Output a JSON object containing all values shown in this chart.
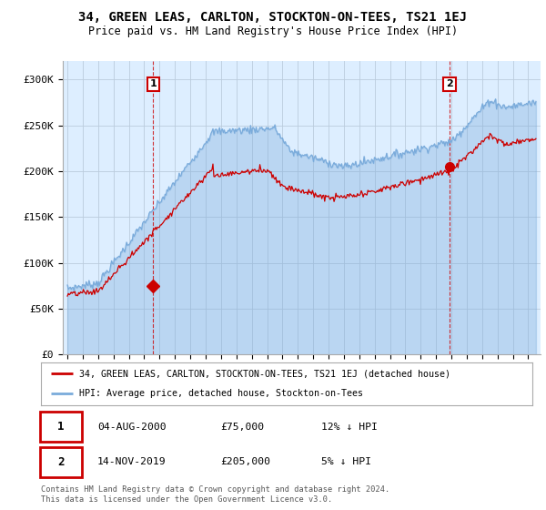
{
  "title": "34, GREEN LEAS, CARLTON, STOCKTON-ON-TEES, TS21 1EJ",
  "subtitle": "Price paid vs. HM Land Registry's House Price Index (HPI)",
  "legend_line1": "34, GREEN LEAS, CARLTON, STOCKTON-ON-TEES, TS21 1EJ (detached house)",
  "legend_line2": "HPI: Average price, detached house, Stockton-on-Tees",
  "annotation1_date": "04-AUG-2000",
  "annotation1_price": "£75,000",
  "annotation1_hpi": "12% ↓ HPI",
  "annotation2_date": "14-NOV-2019",
  "annotation2_price": "£205,000",
  "annotation2_hpi": "5% ↓ HPI",
  "footer": "Contains HM Land Registry data © Crown copyright and database right 2024.\nThis data is licensed under the Open Government Licence v3.0.",
  "red_color": "#cc0000",
  "blue_color": "#7aabdb",
  "bg_color": "#ddeeff",
  "grid_color": "#bbccdd",
  "ylim": [
    0,
    320000
  ],
  "yticks": [
    0,
    50000,
    100000,
    150000,
    200000,
    250000,
    300000
  ],
  "ytick_labels": [
    "£0",
    "£50K",
    "£100K",
    "£150K",
    "£200K",
    "£250K",
    "£300K"
  ],
  "sale1_x": 2000.59,
  "sale1_y": 75000,
  "sale2_x": 2019.87,
  "sale2_y": 205000,
  "xmin": 1994.7,
  "xmax": 2025.8
}
